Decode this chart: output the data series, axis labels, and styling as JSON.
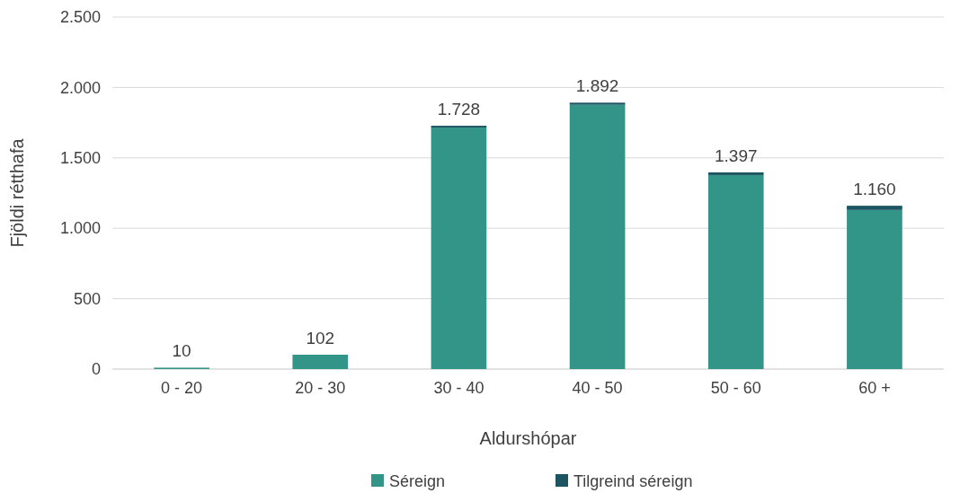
{
  "chart_data": {
    "type": "bar",
    "stacked": true,
    "xlabel": "Aldurshópar",
    "ylabel": "Fjöldi rétthafa",
    "categories": [
      "0 - 20",
      "20 - 30",
      "30 - 40",
      "40 - 50",
      "50 - 60",
      "60 +"
    ],
    "series": [
      {
        "name": "Séreign",
        "color": "#329587",
        "values": [
          10,
          102,
          1715,
          1877,
          1378,
          1130
        ]
      },
      {
        "name": "Tilgreind séreign",
        "color": "#1d5461",
        "values": [
          0,
          0,
          13,
          15,
          19,
          30
        ]
      }
    ],
    "totals": [
      "10",
      "102",
      "1.728",
      "1.892",
      "1.397",
      "1.160"
    ],
    "ylim": [
      0,
      2500
    ],
    "yticks": [
      {
        "value": 0,
        "label": "0"
      },
      {
        "value": 500,
        "label": "500"
      },
      {
        "value": 1000,
        "label": "1.000"
      },
      {
        "value": 1500,
        "label": "1.500"
      },
      {
        "value": 2000,
        "label": "2.000"
      },
      {
        "value": 2500,
        "label": "2.500"
      }
    ],
    "grid": "y",
    "legend": "bottom"
  }
}
